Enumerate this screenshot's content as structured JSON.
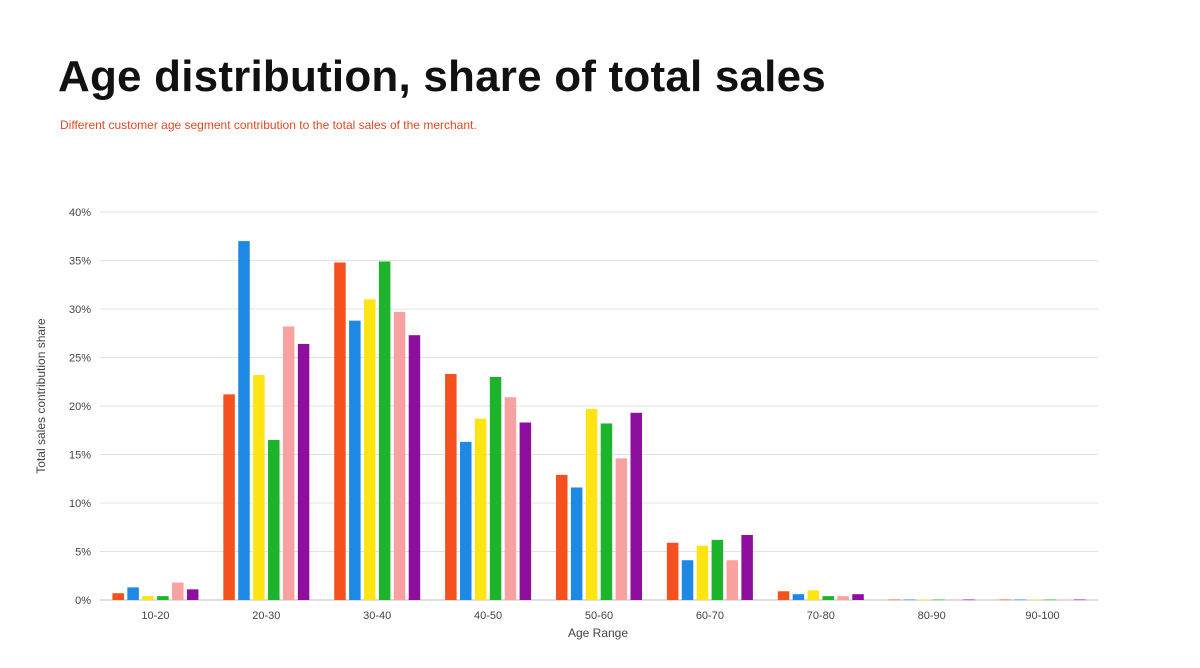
{
  "header": {
    "title": "Age distribution, share of total sales",
    "subtitle": "Different customer age segment contribution to the total sales of the merchant."
  },
  "colors": {
    "title": "#111111",
    "subtitle": "#e04a22",
    "grid": "#e3e3e3",
    "axis_text": "#444444"
  },
  "chart_data": {
    "type": "bar",
    "xlabel": "Age Range",
    "ylabel": "Total sales contribution share",
    "ylim": [
      0,
      40
    ],
    "yticks": [
      0,
      5,
      10,
      15,
      20,
      25,
      30,
      35,
      40
    ],
    "ytick_labels": [
      "0%",
      "5%",
      "10%",
      "15%",
      "20%",
      "25%",
      "30%",
      "35%",
      "40%"
    ],
    "grid": true,
    "legend": "none",
    "categories": [
      "10-20",
      "20-30",
      "30-40",
      "40-50",
      "50-60",
      "60-70",
      "70-80",
      "80-90",
      "90-100"
    ],
    "series": [
      {
        "color": "#f4511e",
        "values": [
          0.7,
          21.2,
          34.8,
          23.3,
          12.9,
          5.9,
          0.9,
          0.05,
          0.05
        ]
      },
      {
        "color": "#1e88e5",
        "values": [
          1.3,
          37.0,
          28.8,
          16.3,
          11.6,
          4.1,
          0.6,
          0.05,
          0.05
        ]
      },
      {
        "color": "#ffe414",
        "values": [
          0.4,
          23.2,
          31.0,
          18.7,
          19.7,
          5.6,
          1.0,
          0.05,
          0.05
        ]
      },
      {
        "color": "#1db42b",
        "values": [
          0.4,
          16.5,
          34.9,
          23.0,
          18.2,
          6.2,
          0.4,
          0.05,
          0.05
        ]
      },
      {
        "color": "#f8a1a1",
        "values": [
          1.8,
          28.2,
          29.7,
          20.9,
          14.6,
          4.1,
          0.4,
          0.05,
          0.05
        ]
      },
      {
        "color": "#8e0e9e",
        "values": [
          1.1,
          26.4,
          27.3,
          18.3,
          19.3,
          6.7,
          0.6,
          0.05,
          0.05
        ]
      }
    ]
  }
}
